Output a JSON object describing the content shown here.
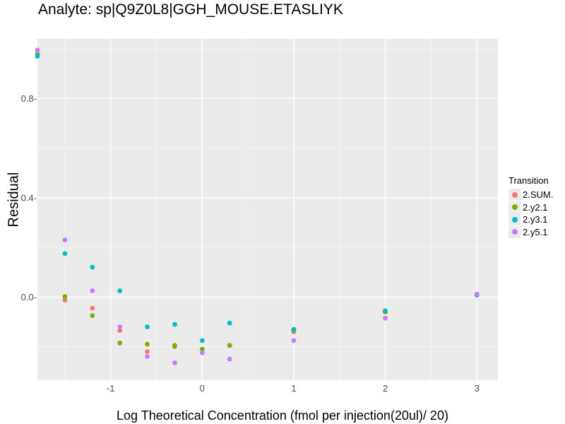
{
  "chart_data": {
    "type": "scatter",
    "title": "Analyte: sp|Q9Z0L8|GGH_MOUSE.ETASLIYK",
    "xlabel": "Log Theoretical Concentration (fmol per injection(20ul)/ 20)",
    "ylabel": "Residual",
    "xlim": [
      -1.8,
      3.23
    ],
    "ylim": [
      -0.335,
      1.04
    ],
    "xticks": [
      -1,
      0,
      1,
      2,
      3
    ],
    "yticks": [
      0.0,
      0.4,
      0.8
    ],
    "ytick_labels": [
      "0.0-",
      "0.4-",
      "0.8-"
    ],
    "grid": true,
    "legend": {
      "title": "Transition",
      "position": "right"
    },
    "series": [
      {
        "name": "2.SUM.",
        "color": "#F8766D",
        "points": [
          [
            -1.8,
            0.98
          ],
          [
            -1.5,
            -0.012
          ],
          [
            -1.2,
            -0.045
          ],
          [
            -0.9,
            -0.135
          ],
          [
            -0.6,
            -0.22
          ],
          [
            -0.3,
            -0.2
          ],
          [
            0,
            -0.21
          ],
          [
            0.3,
            -0.195
          ],
          [
            1,
            -0.14
          ],
          [
            2,
            -0.06
          ],
          [
            3,
            0.01
          ]
        ]
      },
      {
        "name": "2.y2.1",
        "color": "#7CAE00",
        "points": [
          [
            -1.8,
            0.975
          ],
          [
            -1.5,
            0.002
          ],
          [
            -1.2,
            -0.075
          ],
          [
            -0.9,
            -0.185
          ],
          [
            -0.6,
            -0.19
          ],
          [
            -0.3,
            -0.195
          ],
          [
            0,
            -0.21
          ],
          [
            0.3,
            -0.195
          ],
          [
            1,
            -0.135
          ],
          [
            2,
            -0.06
          ],
          [
            3,
            0.01
          ]
        ]
      },
      {
        "name": "2.y3.1",
        "color": "#00BFC4",
        "points": [
          [
            -1.8,
            0.97
          ],
          [
            -1.5,
            0.175
          ],
          [
            -1.2,
            0.12
          ],
          [
            -0.9,
            0.025
          ],
          [
            -0.6,
            -0.12
          ],
          [
            -0.3,
            -0.11
          ],
          [
            0,
            -0.175
          ],
          [
            0.3,
            -0.105
          ],
          [
            1,
            -0.13
          ],
          [
            2,
            -0.055
          ],
          [
            3,
            0.008
          ]
        ]
      },
      {
        "name": "2.y5.1",
        "color": "#C77CFF",
        "points": [
          [
            -1.8,
            0.995
          ],
          [
            -1.5,
            0.23
          ],
          [
            -1.2,
            0.025
          ],
          [
            -0.9,
            -0.12
          ],
          [
            -0.6,
            -0.24
          ],
          [
            -0.3,
            -0.265
          ],
          [
            0,
            -0.225
          ],
          [
            0.3,
            -0.25
          ],
          [
            1,
            -0.175
          ],
          [
            2,
            -0.085
          ],
          [
            3,
            0.012
          ]
        ]
      }
    ]
  }
}
